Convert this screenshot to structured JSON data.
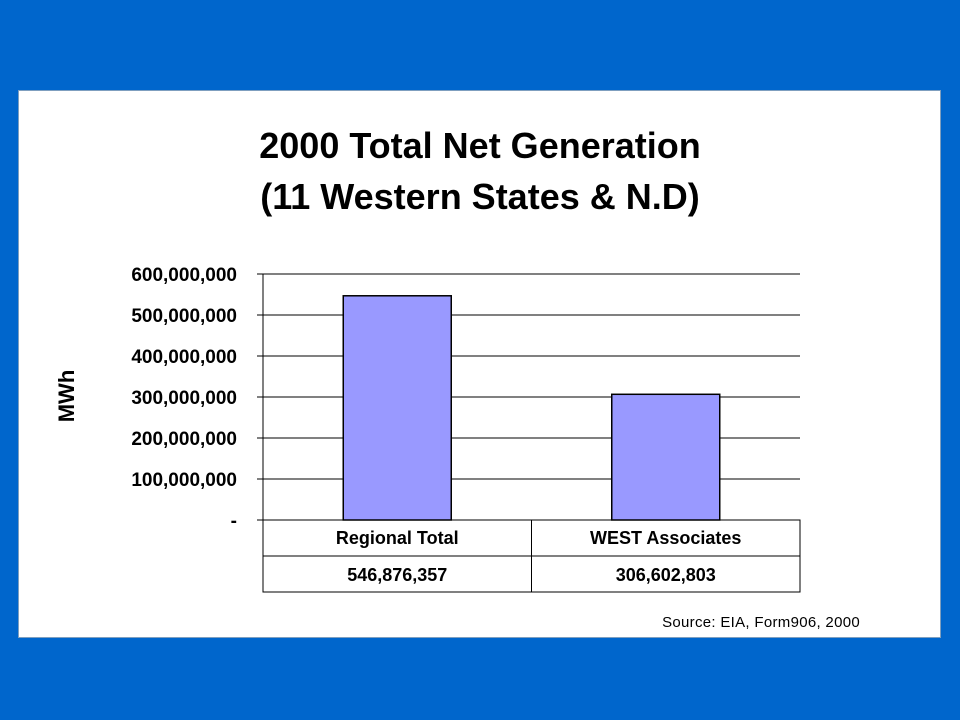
{
  "colors": {
    "background": "#0066cc",
    "panel": "#ffffff",
    "bar_fill": "#9999ff",
    "bar_stroke": "#000000"
  },
  "chart_data": {
    "type": "bar",
    "title": "2000 Total Net Generation",
    "subtitle": "(11 Western States & N.D)",
    "ylabel": "MWh",
    "xlabel": "",
    "categories": [
      "Regional Total",
      "WEST Associates"
    ],
    "values": [
      546876357,
      306602803
    ],
    "value_labels": [
      "546,876,357",
      "306,602,803"
    ],
    "ylim": [
      0,
      600000000
    ],
    "yticks": [
      0,
      100000000,
      200000000,
      300000000,
      400000000,
      500000000,
      600000000
    ],
    "ytick_labels": [
      "-",
      "100,000,000",
      "200,000,000",
      "300,000,000",
      "400,000,000",
      "500,000,000",
      "600,000,000"
    ],
    "grid": true,
    "data_table": true
  },
  "source_note": "Source: EIA, Form906, 2000"
}
